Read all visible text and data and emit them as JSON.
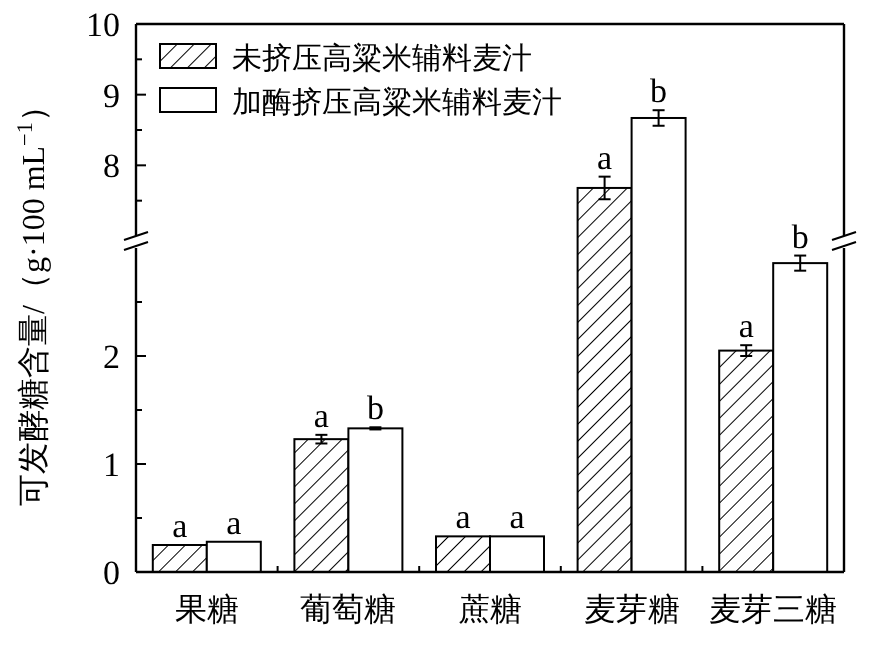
{
  "chart_data": [
    {
      "type": "bar",
      "categories": [
        null,
        null,
        null,
        null,
        null
      ],
      "ylim": [
        7,
        10
      ],
      "yticks": [
        {
          "value": 7.5,
          "label": null
        },
        8,
        {
          "value": 8.5,
          "label": null
        },
        9,
        {
          "value": 9.5,
          "label": null
        },
        10
      ],
      "tick_labels": "y",
      "legend": "top left",
      "series": [
        {
          "name": "未挤压高粱米辅料麦汁",
          "color": "#000000",
          "values": [
            null,
            null,
            null,
            7.68,
            null
          ],
          "errors": [
            null,
            null,
            null,
            0.16,
            null
          ],
          "value_labels": [
            null,
            null,
            null,
            "a",
            null
          ]
        },
        {
          "name": "加酶挤压高粱米辅料麦汁",
          "color": "#ffffff",
          "values": [
            null,
            null,
            null,
            8.67,
            null
          ],
          "errors": [
            null,
            null,
            null,
            0.11,
            null
          ],
          "value_labels": [
            null,
            null,
            null,
            "b",
            null
          ]
        }
      ]
    },
    {
      "type": "bar",
      "categories": [
        "果糖",
        "葡萄糖",
        "蔗糖",
        "麦芽糖",
        "麦芽三糖"
      ],
      "ylim": [
        0,
        3
      ],
      "yticks": [
        0,
        {
          "value": 0.5,
          "label": null
        },
        1,
        {
          "value": 1.5,
          "label": null
        },
        2,
        {
          "value": 2.5,
          "label": null
        }
      ],
      "ylabel": "可发酵糖含量/（g·100 mL$^{−1}$）",
      "series": [
        {
          "color": "#000000",
          "values": [
            0.25,
            1.23,
            0.33,
            null,
            2.05
          ],
          "errors": [
            null,
            0.04,
            null,
            null,
            0.05
          ],
          "value_labels": [
            "a",
            "a",
            "a",
            null,
            "a"
          ]
        },
        {
          "color": "#ffffff",
          "values": [
            0.28,
            1.33,
            0.33,
            null,
            2.86
          ],
          "errors": [
            null,
            0.01,
            null,
            null,
            0.07
          ],
          "value_labels": [
            "a",
            "b",
            "a",
            null,
            "b"
          ]
        }
      ]
    }
  ]
}
